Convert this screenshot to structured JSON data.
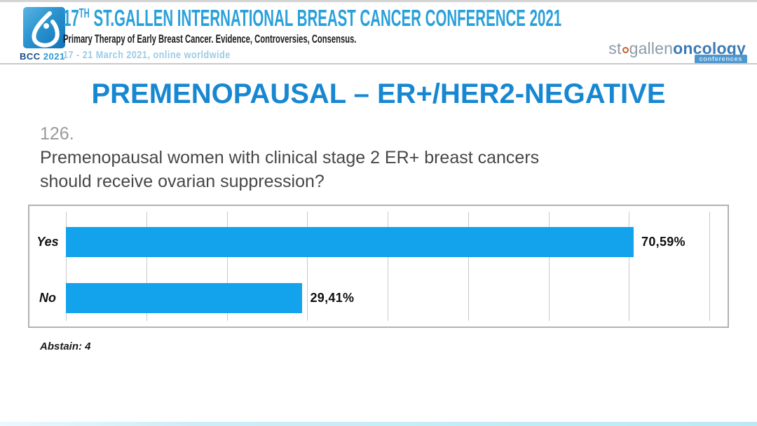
{
  "header": {
    "logo_caption_bold": "BCC",
    "logo_caption_year": " 2021",
    "title_prefix": "17",
    "title_sup": "TH",
    "title_rest": " ST.GALLEN INTERNATIONAL BREAST CANCER CONFERENCE 2021",
    "subtitle": "Primary Therapy of Early Breast Cancer. Evidence, Controversies, Consensus.",
    "date_line": "17 - 21 March 2021, online worldwide",
    "org_logo": {
      "part_st": "st",
      "part_gallen": "gallen",
      "part_oncology": "oncology",
      "badge": "conferences"
    }
  },
  "slide": {
    "title": "PREMENOPAUSAL – ER+/HER2-NEGATIVE",
    "question_number": "126.",
    "question_line1": "Premenopausal women with clinical stage 2 ER+ breast cancers",
    "question_line2": "should receive ovarian suppression?",
    "abstain": "Abstain: 4"
  },
  "chart_data": {
    "type": "bar",
    "orientation": "horizontal",
    "categories": [
      "Yes",
      "No"
    ],
    "values": [
      70.59,
      29.41
    ],
    "value_labels": [
      "70,59%",
      "29,41%"
    ],
    "xlim": [
      0,
      80
    ],
    "gridline_step": 10,
    "grid": true,
    "bar_color": "#12a3ec",
    "title": "",
    "xlabel": "",
    "ylabel": "",
    "abstain_count": 4
  },
  "colors": {
    "accent_blue": "#1787d2",
    "header_blue": "#2aa0da",
    "date_blue": "#9bcbe7",
    "bar_blue": "#12a3ec",
    "logo_navy": "#1c4b8a",
    "org_gray": "#8c9ba8",
    "org_blue": "#3c7ab5",
    "org_orange": "#cc5f2a"
  }
}
